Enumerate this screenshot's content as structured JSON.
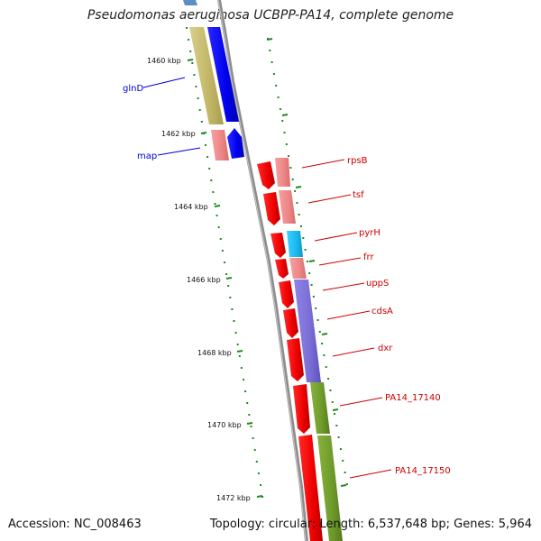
{
  "title": "Pseudomonas aeruginosa UCBPP-PA14, complete genome",
  "footer": {
    "accession": "Accession: NC_008463",
    "info": "Topology: circular; Length: 6,537,648 bp; Genes: 5,964"
  },
  "ticks": [
    "1460 kbp",
    "1462 kbp",
    "1464 kbp",
    "1466 kbp",
    "1468 kbp",
    "1470 kbp",
    "1472 kbp"
  ],
  "left_labels": [
    "glnD",
    "map"
  ],
  "right_labels": [
    "rpsB",
    "tsf",
    "pyrH",
    "frr",
    "uppS",
    "cdsA",
    "dxr",
    "PA14_17140",
    "PA14_17150"
  ],
  "colors": {
    "label_left": "#0000cc",
    "label_right": "#cc0000",
    "backbone": "#8c8c8c",
    "tick": "#1f8a1f",
    "gene_blue": "#0000ee",
    "gene_red": "#ee0000",
    "function_olive": "#c8be73",
    "function_pink": "#f08c8c",
    "function_cyan": "#1ab8ee",
    "function_purple": "#7a6ed6",
    "function_green": "#6e9a2a"
  }
}
